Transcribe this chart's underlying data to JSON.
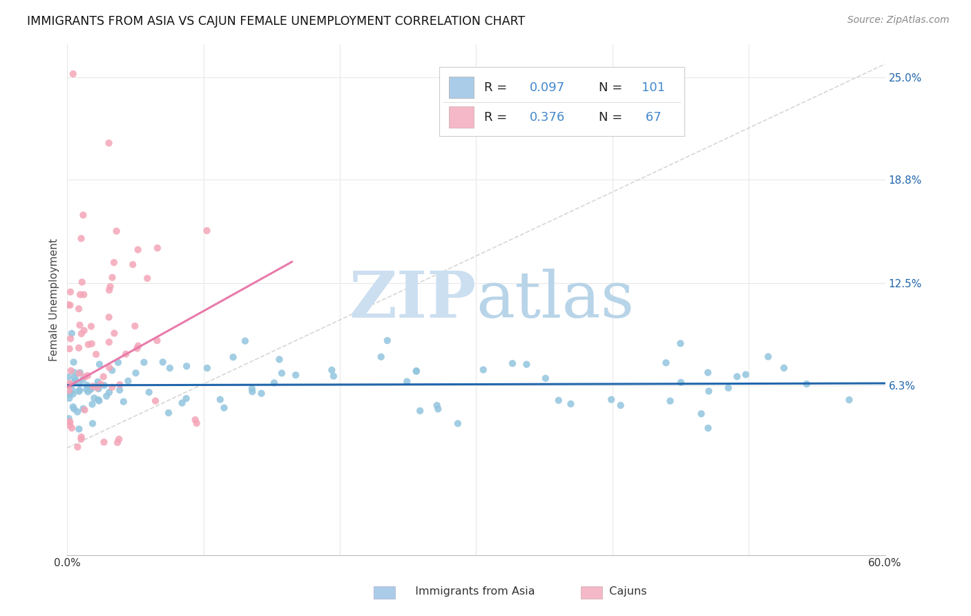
{
  "title": "IMMIGRANTS FROM ASIA VS CAJUN FEMALE UNEMPLOYMENT CORRELATION CHART",
  "source": "Source: ZipAtlas.com",
  "ylabel": "Female Unemployment",
  "ytick_labels": [
    "6.3%",
    "12.5%",
    "18.8%",
    "25.0%"
  ],
  "ytick_values": [
    0.063,
    0.125,
    0.188,
    0.25
  ],
  "xlim": [
    0.0,
    0.6
  ],
  "ylim": [
    -0.04,
    0.27
  ],
  "blue_color": "#92c5de",
  "pink_color": "#f4a6b8",
  "trendline_blue_color": "#2166ac",
  "trendline_pink_color": "#d6604d",
  "trendline_pink_actual": "#e87aaa",
  "watermark_zip_color": "#cce0f0",
  "watermark_atlas_color": "#c0d8ec",
  "diag_line_color": "#cccccc",
  "grid_color": "#e8e8e8",
  "legend_r_color": "#333333",
  "legend_val_color": "#4488cc",
  "legend_blue_fill": "#aacce8",
  "legend_pink_fill": "#f4b8c8"
}
